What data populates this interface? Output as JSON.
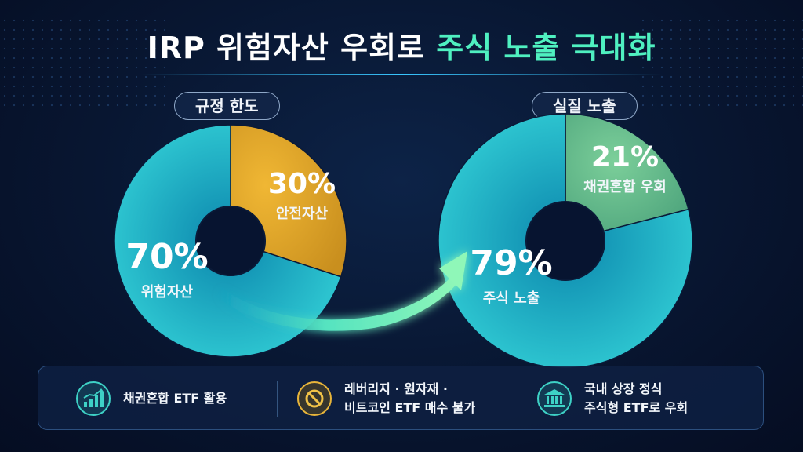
{
  "title": {
    "main": "IRP 위험자산 우회로",
    "accent": "주식 노출 극대화"
  },
  "colors": {
    "accent": "#4ff0c0",
    "risk": "#1ea9c2",
    "safe": "#e0a52c",
    "bond_mixed": "#5fb98a",
    "arrow": "#6ff2b4"
  },
  "chart_data": [
    {
      "type": "pie",
      "title": "규정 한도",
      "slices": [
        {
          "label": "위험자산",
          "value": 70,
          "display": "70%",
          "color": "#1ea9c2"
        },
        {
          "label": "안전자산",
          "value": 30,
          "display": "30%",
          "color": "#e0a52c"
        }
      ]
    },
    {
      "type": "pie",
      "title": "실질 노출",
      "slices": [
        {
          "label": "주식 노출",
          "value": 79,
          "display": "79%",
          "color": "#1ea9c2"
        },
        {
          "label": "채권혼합 우회",
          "value": 21,
          "display": "21%",
          "color": "#5fb98a"
        }
      ]
    }
  ],
  "footer": {
    "items": [
      {
        "icon": "bar-chart-growth-icon",
        "lines": [
          "채권혼합 ETF 활용"
        ]
      },
      {
        "icon": "prohibited-icon",
        "lines": [
          "레버리지 · 원자재 ·",
          "비트코인 ETF 매수 불가"
        ]
      },
      {
        "icon": "bank-building-icon",
        "lines": [
          "국내 상장 정식",
          "주식형 ETF로 우회"
        ]
      }
    ]
  }
}
